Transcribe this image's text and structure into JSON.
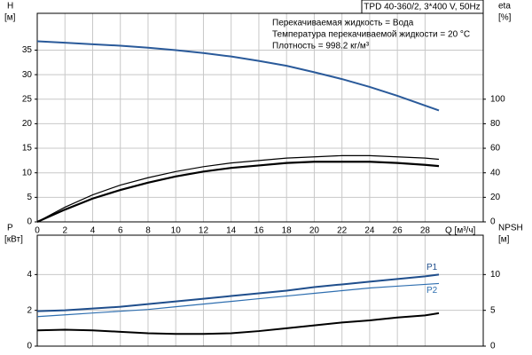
{
  "chart_data": [
    {
      "type": "line",
      "title": "TPD 40-360/2, 3*400 V, 50Hz",
      "notes": [
        "Перекачиваемая жидкость = Вода",
        "Температура перекачиваемой жидкости = 20 °C",
        "Плотность = 998.2 кг/м³"
      ],
      "ylabel": "H",
      "ylabel_unit": "[м]",
      "y2label": "eta",
      "y2label_unit": "[%]",
      "xlabel": "Q [м³/ч]",
      "x": [
        0,
        2,
        4,
        6,
        8,
        10,
        12,
        14,
        16,
        18,
        20,
        22,
        24,
        26,
        28,
        29
      ],
      "xlim": [
        0,
        32.2
      ],
      "xticks": [
        0,
        2,
        4,
        6,
        8,
        10,
        12,
        14,
        16,
        18,
        20,
        22,
        24,
        26,
        28
      ],
      "ylim": [
        0,
        42.5
      ],
      "yticks": [
        0,
        5,
        10,
        15,
        20,
        25,
        30,
        35
      ],
      "y2lim": [
        0,
        170
      ],
      "y2ticks": [
        0,
        20,
        40,
        60,
        80,
        100
      ],
      "grid": true,
      "series": [
        {
          "color": "#2a5a9a",
          "width": 2,
          "values": [
            36.8,
            36.5,
            36.2,
            35.9,
            35.5,
            35.0,
            34.4,
            33.7,
            32.8,
            31.8,
            30.5,
            29.1,
            27.5,
            25.7,
            23.7,
            22.7
          ]
        },
        {
          "color": "#000000",
          "width": 1.2,
          "axis": "y2",
          "values": [
            0,
            12,
            22,
            30,
            36,
            41,
            45,
            48,
            50,
            52,
            53,
            54,
            54,
            53,
            52,
            51
          ]
        },
        {
          "color": "#000000",
          "width": 2.2,
          "axis": "y2",
          "values": [
            0,
            10,
            19,
            26,
            32,
            37,
            41,
            44,
            46,
            48,
            49,
            49,
            49,
            48,
            46.5,
            45.5
          ]
        }
      ]
    },
    {
      "type": "line",
      "ylabel": "P",
      "ylabel_unit": "[кВт]",
      "y2label": "NPSH",
      "y2label_unit": "[м]",
      "x": [
        0,
        2,
        4,
        6,
        8,
        10,
        12,
        14,
        16,
        18,
        20,
        22,
        24,
        26,
        28,
        29
      ],
      "xlim": [
        0,
        32.2
      ],
      "ylim": [
        0,
        6.2
      ],
      "yticks": [
        0,
        2,
        4
      ],
      "y2lim": [
        0,
        15.5
      ],
      "y2ticks": [
        0,
        5,
        10
      ],
      "grid": true,
      "series": [
        {
          "name": "P1",
          "color": "#1f4e8c",
          "width": 2,
          "values": [
            1.95,
            2.0,
            2.1,
            2.2,
            2.35,
            2.5,
            2.65,
            2.8,
            2.95,
            3.1,
            3.3,
            3.45,
            3.6,
            3.75,
            3.9,
            4.0
          ]
        },
        {
          "name": "P2",
          "color": "#2f6fb0",
          "width": 1.2,
          "values": [
            1.65,
            1.75,
            1.85,
            1.95,
            2.05,
            2.2,
            2.35,
            2.5,
            2.65,
            2.8,
            2.95,
            3.1,
            3.25,
            3.35,
            3.45,
            3.5
          ]
        },
        {
          "color": "#000000",
          "width": 2,
          "axis": "y2",
          "values": [
            2.2,
            2.3,
            2.2,
            2.0,
            1.8,
            1.7,
            1.7,
            1.8,
            2.1,
            2.5,
            2.9,
            3.3,
            3.6,
            4.0,
            4.3,
            4.6
          ]
        }
      ]
    }
  ]
}
